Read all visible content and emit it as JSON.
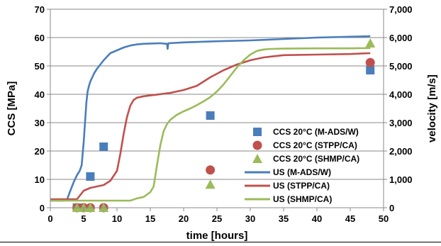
{
  "chart_data": {
    "type": "scatter",
    "xlabel": "time [hours]",
    "ylabel": "CCS [MPa]",
    "y2label": "velocity [m/s]",
    "xlim": [
      0,
      50
    ],
    "ylim": [
      0,
      70
    ],
    "y2lim": [
      0,
      7000
    ],
    "xticks": [
      0,
      5,
      10,
      15,
      20,
      25,
      30,
      35,
      40,
      45,
      50
    ],
    "yticks": [
      0,
      10,
      20,
      30,
      40,
      50,
      60,
      70
    ],
    "y2ticks": [
      "0",
      "1,000",
      "2,000",
      "3,000",
      "4,000",
      "5,000",
      "6,000",
      "7,000"
    ],
    "y2tick_values": [
      0,
      1000,
      2000,
      3000,
      4000,
      5000,
      6000,
      7000
    ],
    "grid": "horizontal",
    "legend_position": "right-center",
    "colors": {
      "blue": "#4a7ebb",
      "red": "#c0504d",
      "green": "#9bbb59"
    },
    "series": [
      {
        "name": "CCS 20°C (M-ADS/W)",
        "kind": "marker",
        "marker": "square",
        "color": "#4a7ebb",
        "axis": "left",
        "x": [
          4,
          6,
          8,
          24,
          48
        ],
        "y": [
          0,
          11,
          21.5,
          32.5,
          48.5
        ]
      },
      {
        "name": "CCS 20°C (STPP/CA)",
        "kind": "marker",
        "marker": "circle",
        "color": "#c0504d",
        "axis": "left",
        "x": [
          4,
          5,
          6,
          8,
          24,
          48
        ],
        "y": [
          0,
          0,
          0,
          0,
          13.3,
          51.2
        ]
      },
      {
        "name": "CCS 20°C (SHMP/CA)",
        "kind": "marker",
        "marker": "triangle",
        "color": "#9bbb59",
        "axis": "left",
        "x": [
          4,
          5,
          6,
          8,
          24,
          48
        ],
        "y": [
          0,
          0,
          0,
          0,
          8.2,
          58
        ]
      },
      {
        "name": "US (M-ADS/W)",
        "kind": "line",
        "color": "#4a7ebb",
        "axis": "right",
        "x": [
          0,
          2.2,
          2.5,
          3,
          3.5,
          4,
          4.4,
          4.7,
          5,
          5.2,
          5.4,
          5.6,
          5.8,
          6,
          6.3,
          6.6,
          7,
          7.5,
          8,
          9,
          10,
          11,
          12,
          13,
          14,
          15,
          16.5,
          17.5,
          17.6,
          17.7,
          20,
          25,
          30,
          35,
          40,
          45,
          48
        ],
        "y": [
          250,
          250,
          280,
          600,
          900,
          1150,
          1300,
          1500,
          2300,
          3000,
          3700,
          4100,
          4300,
          4450,
          4600,
          4750,
          4900,
          5050,
          5200,
          5450,
          5550,
          5650,
          5720,
          5760,
          5780,
          5790,
          5800,
          5780,
          5600,
          5800,
          5830,
          5870,
          5900,
          5950,
          6000,
          6030,
          6050
        ]
      },
      {
        "name": "US (STPP/CA)",
        "kind": "line",
        "color": "#c0504d",
        "axis": "right",
        "x": [
          0,
          4,
          5,
          6,
          7,
          8,
          9,
          10,
          10.5,
          11,
          11.5,
          12,
          12.5,
          13,
          14,
          15,
          16,
          18,
          20,
          22,
          24,
          26,
          28,
          30,
          32,
          35,
          40,
          45,
          48
        ],
        "y": [
          300,
          300,
          600,
          700,
          750,
          800,
          950,
          1300,
          1900,
          2600,
          3200,
          3600,
          3800,
          3880,
          3930,
          3960,
          3990,
          4050,
          4150,
          4300,
          4600,
          4850,
          5050,
          5200,
          5300,
          5380,
          5400,
          5420,
          5450
        ]
      },
      {
        "name": "US (SHMP/CA)",
        "kind": "line",
        "color": "#9bbb59",
        "axis": "right",
        "x": [
          0,
          12,
          13,
          14,
          15,
          15.5,
          16,
          16.5,
          17,
          17.5,
          18,
          19,
          20,
          21,
          22,
          23,
          24,
          25,
          26,
          27,
          28,
          29,
          30,
          31,
          32,
          33,
          35,
          40,
          45,
          48
        ],
        "y": [
          250,
          250,
          330,
          380,
          550,
          750,
          1500,
          2200,
          2700,
          2950,
          3100,
          3280,
          3400,
          3500,
          3620,
          3750,
          3900,
          4100,
          4350,
          4650,
          4950,
          5200,
          5400,
          5530,
          5580,
          5600,
          5610,
          5620,
          5620,
          5630
        ]
      }
    ]
  }
}
